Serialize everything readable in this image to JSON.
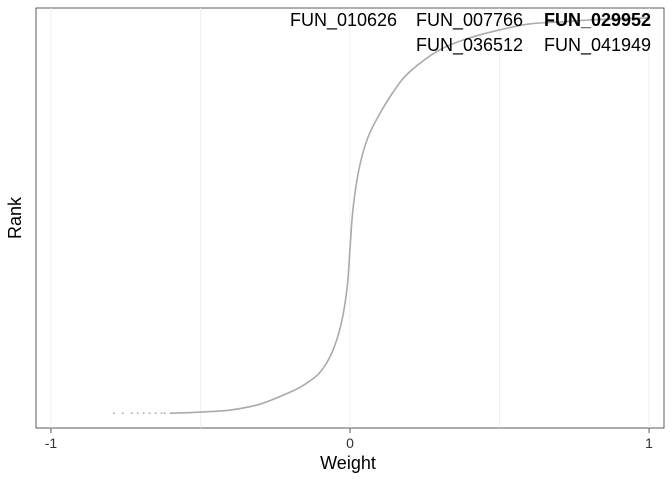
{
  "chart_data": {
    "type": "scatter",
    "xlabel": "Weight",
    "ylabel": "Rank",
    "xlim": [
      -1.05,
      1.05
    ],
    "x_ticks": [
      {
        "value": -1,
        "label": "-1"
      },
      {
        "value": 0,
        "label": "0"
      },
      {
        "value": 1,
        "label": "1"
      }
    ],
    "grid": true,
    "curve_color": "#aaaaaa",
    "left_tail_points": [
      {
        "x": -0.79,
        "rank": 0.007
      },
      {
        "x": -0.76,
        "rank": 0.007
      },
      {
        "x": -0.73,
        "rank": 0.007
      },
      {
        "x": -0.71,
        "rank": 0.007
      },
      {
        "x": -0.69,
        "rank": 0.007
      },
      {
        "x": -0.67,
        "rank": 0.007
      },
      {
        "x": -0.65,
        "rank": 0.007
      },
      {
        "x": -0.63,
        "rank": 0.007
      },
      {
        "x": -0.62,
        "rank": 0.007
      },
      {
        "x": -0.6,
        "rank": 0.007
      },
      {
        "x": -0.59,
        "rank": 0.007
      }
    ],
    "curve_points": [
      {
        "x": -0.6,
        "rank": 0.007
      },
      {
        "x": -0.5,
        "rank": 0.01
      },
      {
        "x": -0.4,
        "rank": 0.015
      },
      {
        "x": -0.3,
        "rank": 0.03
      },
      {
        "x": -0.2,
        "rank": 0.06
      },
      {
        "x": -0.15,
        "rank": 0.08
      },
      {
        "x": -0.1,
        "rank": 0.11
      },
      {
        "x": -0.06,
        "rank": 0.16
      },
      {
        "x": -0.03,
        "rank": 0.23
      },
      {
        "x": -0.01,
        "rank": 0.32
      },
      {
        "x": 0,
        "rank": 0.42
      },
      {
        "x": 0.01,
        "rank": 0.52
      },
      {
        "x": 0.03,
        "rank": 0.62
      },
      {
        "x": 0.06,
        "rank": 0.7
      },
      {
        "x": 0.1,
        "rank": 0.76
      },
      {
        "x": 0.15,
        "rank": 0.82
      },
      {
        "x": 0.2,
        "rank": 0.865
      },
      {
        "x": 0.3,
        "rank": 0.92
      },
      {
        "x": 0.4,
        "rank": 0.95
      },
      {
        "x": 0.5,
        "rank": 0.97
      },
      {
        "x": 0.6,
        "rank": 0.985
      },
      {
        "x": 0.7,
        "rank": 0.99
      },
      {
        "x": 0.8,
        "rank": 0.995
      },
      {
        "x": 0.9,
        "rank": 0.998
      },
      {
        "x": 1.0,
        "rank": 1.0
      }
    ],
    "labels_row1": [
      {
        "text": "FUN_010626",
        "weight": "normal"
      },
      {
        "text": "FUN_007766",
        "weight": "normal"
      },
      {
        "text": "FUN_029952",
        "weight": "bold"
      }
    ],
    "labels_row2": [
      {
        "text": "FUN_036512"
      },
      {
        "text": "FUN_041949"
      }
    ]
  }
}
